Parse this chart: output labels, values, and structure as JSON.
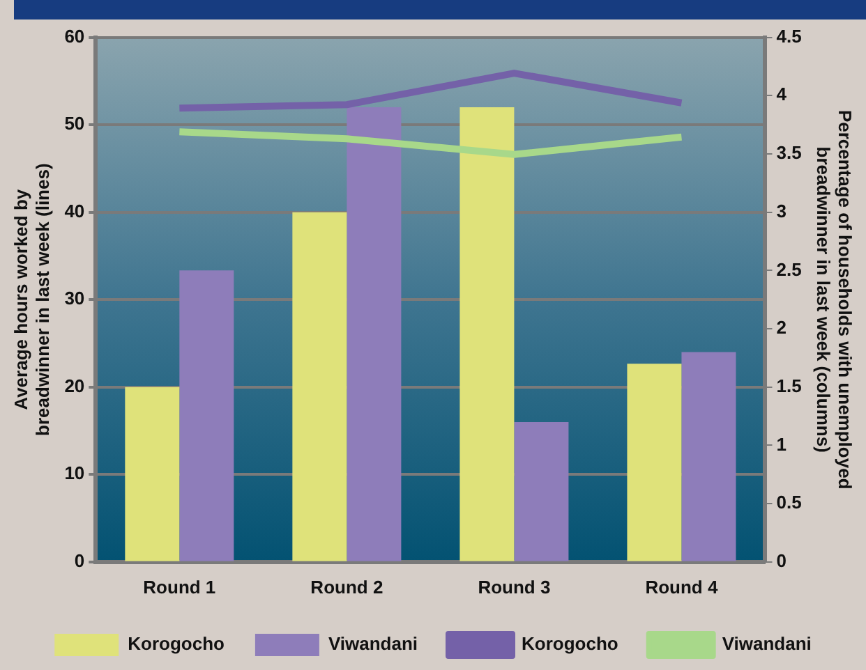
{
  "chart_data": {
    "type": "bar",
    "categories": [
      "Round 1",
      "Round 2",
      "Round 3",
      "Round 4"
    ],
    "series": [
      {
        "name": "Korogocho",
        "axis": "y2",
        "color": "#dfe27a",
        "values": [
          1.5,
          3.0,
          3.9,
          1.7
        ]
      },
      {
        "name": "Viwandani",
        "axis": "y2",
        "color": "#8e7dba",
        "values": [
          2.5,
          3.9,
          1.2,
          1.8
        ]
      },
      {
        "name": "Korogocho",
        "type": "line",
        "color": "#7461a8",
        "values": [
          51.9,
          52.3,
          55.9,
          52.5
        ]
      },
      {
        "name": "Viwandani",
        "type": "line",
        "color": "#a8d88a",
        "values": [
          49.2,
          48.4,
          46.6,
          48.6
        ]
      }
    ],
    "ylabel": "Average hours worked by breadwinner in last week (lines)",
    "y2label": "Percentage of households with unemployed breadwinner in last week (columns)",
    "ylim": [
      0,
      60
    ],
    "yticks": [
      0,
      10,
      20,
      30,
      40,
      50,
      60
    ],
    "y2lim": [
      0,
      4.5
    ],
    "y2ticks": [
      0,
      0.5,
      1,
      1.5,
      2,
      2.5,
      3,
      3.5,
      4,
      4.5
    ],
    "grid": "y",
    "legend": "bottom",
    "marker": "none",
    "line_style": "solid"
  }
}
